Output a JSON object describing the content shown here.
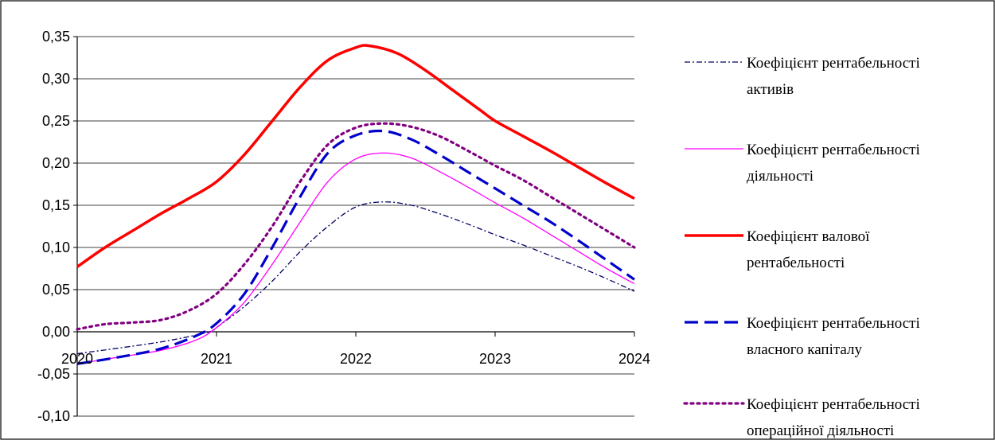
{
  "chart_data": {
    "type": "line",
    "title": "",
    "xlabel": "",
    "ylabel": "",
    "x": [
      2020,
      2021,
      2022,
      2023,
      2024
    ],
    "xlim": [
      2020,
      2024
    ],
    "ylim": [
      -0.1,
      0.35
    ],
    "x_tick_labels": [
      "2020",
      "2021",
      "2022",
      "2023",
      "2024"
    ],
    "y_tick_labels": [
      "-0,10",
      "-0,05",
      "0,00",
      "0,05",
      "0,10",
      "0,15",
      "0,20",
      "0,25",
      "0,30",
      "0,35"
    ],
    "grid": "horizontal",
    "legend_position": "right",
    "series": [
      {
        "name_lines": [
          "Коефіцієнт рентабельності",
          "активів"
        ],
        "color": "#000066",
        "style": "dashdot",
        "values": [
          [
            2020.0,
            -0.026
          ],
          [
            2020.6,
            -0.012
          ],
          [
            2020.95,
            0.0
          ],
          [
            2021.0,
            0.005
          ],
          [
            2021.2,
            0.03
          ],
          [
            2021.4,
            0.06
          ],
          [
            2021.6,
            0.095
          ],
          [
            2021.8,
            0.125
          ],
          [
            2022.0,
            0.148
          ],
          [
            2022.2,
            0.154
          ],
          [
            2022.4,
            0.15
          ],
          [
            2022.6,
            0.14
          ],
          [
            2022.8,
            0.128
          ],
          [
            2023.0,
            0.115
          ],
          [
            2023.2,
            0.103
          ],
          [
            2023.4,
            0.09
          ],
          [
            2023.6,
            0.077
          ],
          [
            2023.8,
            0.063
          ],
          [
            2024.0,
            0.048
          ]
        ]
      },
      {
        "name_lines": [
          "Коефіцієнт рентабельності",
          "діяльності"
        ],
        "color": "#ff00ff",
        "style": "solid-thin",
        "values": [
          [
            2020.0,
            -0.038
          ],
          [
            2020.3,
            -0.03
          ],
          [
            2020.6,
            -0.022
          ],
          [
            2020.85,
            -0.01
          ],
          [
            2021.0,
            0.005
          ],
          [
            2021.2,
            0.035
          ],
          [
            2021.4,
            0.08
          ],
          [
            2021.6,
            0.13
          ],
          [
            2021.8,
            0.178
          ],
          [
            2022.0,
            0.205
          ],
          [
            2022.2,
            0.212
          ],
          [
            2022.4,
            0.206
          ],
          [
            2022.6,
            0.19
          ],
          [
            2022.8,
            0.172
          ],
          [
            2023.0,
            0.153
          ],
          [
            2023.2,
            0.135
          ],
          [
            2023.4,
            0.115
          ],
          [
            2023.6,
            0.095
          ],
          [
            2023.8,
            0.075
          ],
          [
            2024.0,
            0.057
          ]
        ]
      },
      {
        "name_lines": [
          "Коефіцієнт валової",
          "рентабельності"
        ],
        "color": "#ff0000",
        "style": "solid-thick",
        "values": [
          [
            2020.0,
            0.077
          ],
          [
            2020.2,
            0.1
          ],
          [
            2020.4,
            0.12
          ],
          [
            2020.6,
            0.14
          ],
          [
            2020.8,
            0.158
          ],
          [
            2021.0,
            0.178
          ],
          [
            2021.2,
            0.21
          ],
          [
            2021.4,
            0.25
          ],
          [
            2021.6,
            0.29
          ],
          [
            2021.8,
            0.322
          ],
          [
            2022.0,
            0.337
          ],
          [
            2022.1,
            0.339
          ],
          [
            2022.3,
            0.33
          ],
          [
            2022.5,
            0.31
          ],
          [
            2022.7,
            0.286
          ],
          [
            2022.9,
            0.262
          ],
          [
            2023.0,
            0.25
          ],
          [
            2023.2,
            0.232
          ],
          [
            2023.4,
            0.214
          ],
          [
            2023.6,
            0.195
          ],
          [
            2023.8,
            0.176
          ],
          [
            2024.0,
            0.158
          ]
        ]
      },
      {
        "name_lines": [
          "Коефіцієнт  рентабельності",
          "власного капіталу"
        ],
        "color": "#0000cc",
        "style": "dashed",
        "values": [
          [
            2020.0,
            -0.038
          ],
          [
            2020.3,
            -0.03
          ],
          [
            2020.6,
            -0.02
          ],
          [
            2020.85,
            -0.005
          ],
          [
            2021.0,
            0.01
          ],
          [
            2021.2,
            0.045
          ],
          [
            2021.4,
            0.1
          ],
          [
            2021.6,
            0.16
          ],
          [
            2021.8,
            0.212
          ],
          [
            2022.0,
            0.233
          ],
          [
            2022.2,
            0.238
          ],
          [
            2022.4,
            0.228
          ],
          [
            2022.6,
            0.21
          ],
          [
            2022.8,
            0.19
          ],
          [
            2023.0,
            0.17
          ],
          [
            2023.2,
            0.15
          ],
          [
            2023.4,
            0.13
          ],
          [
            2023.6,
            0.108
          ],
          [
            2023.8,
            0.085
          ],
          [
            2024.0,
            0.062
          ]
        ]
      },
      {
        "name_lines": [
          "Коефіцієнт  рентабельності",
          "операційної діяльності"
        ],
        "color": "#800080",
        "style": "dotted",
        "values": [
          [
            2020.0,
            0.003
          ],
          [
            2020.2,
            0.009
          ],
          [
            2020.4,
            0.011
          ],
          [
            2020.6,
            0.014
          ],
          [
            2020.8,
            0.025
          ],
          [
            2021.0,
            0.045
          ],
          [
            2021.2,
            0.08
          ],
          [
            2021.4,
            0.125
          ],
          [
            2021.6,
            0.178
          ],
          [
            2021.8,
            0.222
          ],
          [
            2022.0,
            0.242
          ],
          [
            2022.2,
            0.247
          ],
          [
            2022.4,
            0.243
          ],
          [
            2022.6,
            0.232
          ],
          [
            2022.8,
            0.215
          ],
          [
            2023.0,
            0.197
          ],
          [
            2023.2,
            0.18
          ],
          [
            2023.4,
            0.16
          ],
          [
            2023.6,
            0.14
          ],
          [
            2023.8,
            0.12
          ],
          [
            2024.0,
            0.1
          ]
        ]
      }
    ]
  }
}
